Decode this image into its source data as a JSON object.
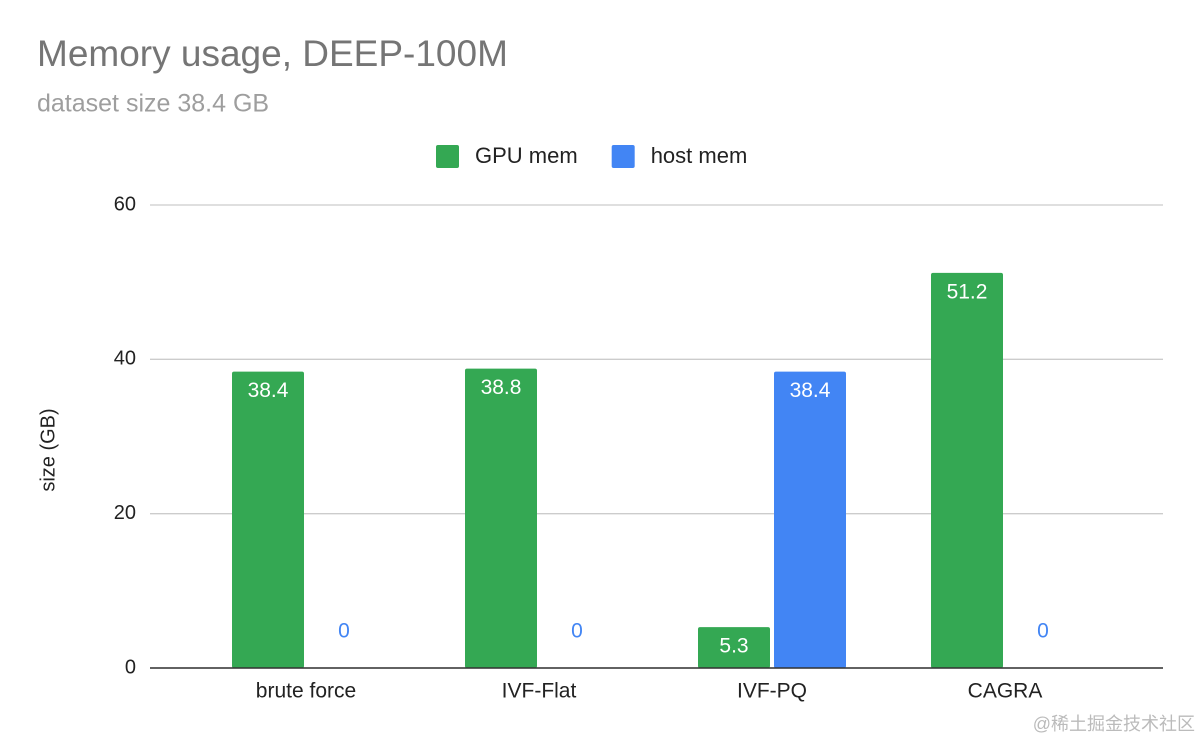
{
  "chart_data": {
    "type": "bar",
    "title": "Memory usage, DEEP-100M",
    "subtitle": "dataset size 38.4 GB",
    "y_label": "size (GB)",
    "categories": [
      "brute force",
      "IVF-Flat",
      "IVF-PQ",
      "CAGRA"
    ],
    "series": [
      {
        "name": "GPU mem",
        "color": "#34a853",
        "values": [
          38.4,
          38.8,
          5.3,
          51.2
        ]
      },
      {
        "name": "host mem",
        "color": "#4285f4",
        "values": [
          0,
          0,
          38.4,
          0
        ]
      }
    ],
    "ylim": [
      0,
      60
    ],
    "yticks": [
      0,
      20,
      40,
      60
    ],
    "grid": true,
    "legend": "top",
    "watermark": "@稀土掘金技术社区"
  }
}
